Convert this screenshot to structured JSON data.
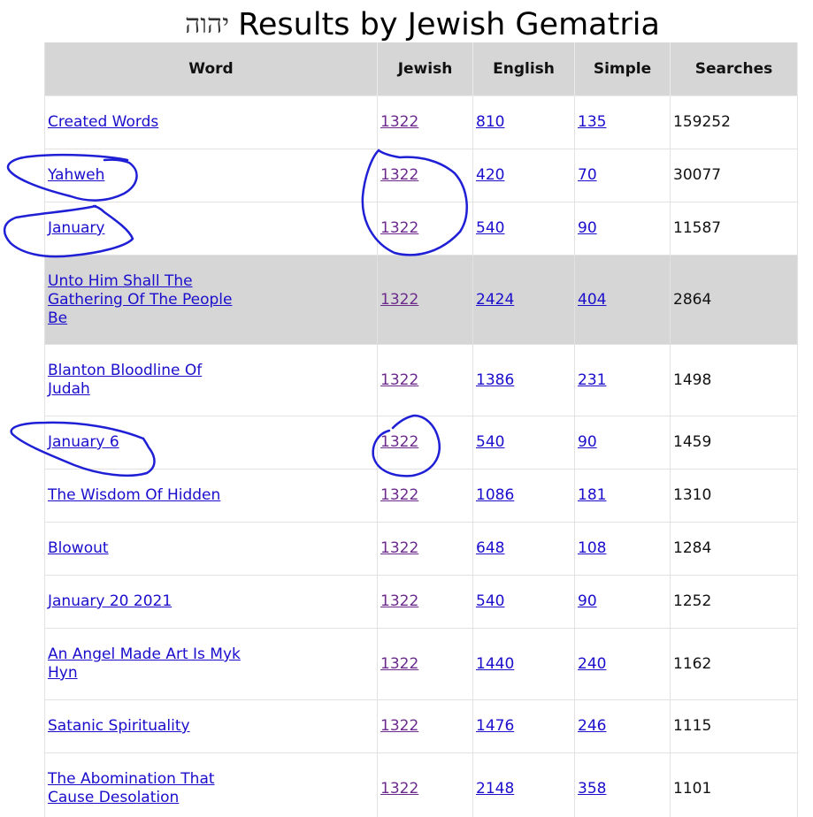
{
  "page": {
    "title_hebrew": "יהוה",
    "title": "Results by Jewish Gematria"
  },
  "table": {
    "headers": {
      "word": "Word",
      "jewish": "Jewish",
      "english": "English",
      "simple": "Simple",
      "searches": "Searches"
    },
    "rows": [
      {
        "word": "Created Words",
        "jewish": "1322",
        "english": "810",
        "simple": "135",
        "searches": "159252"
      },
      {
        "word": "Yahweh",
        "jewish": "1322",
        "english": "420",
        "simple": "70",
        "searches": "30077"
      },
      {
        "word": "January",
        "jewish": "1322",
        "english": "540",
        "simple": "90",
        "searches": "11587"
      },
      {
        "word": "Unto Him Shall The Gathering Of The People Be",
        "jewish": "1322",
        "english": "2424",
        "simple": "404",
        "searches": "2864"
      },
      {
        "word": "Blanton Bloodline Of Judah",
        "jewish": "1322",
        "english": "1386",
        "simple": "231",
        "searches": "1498"
      },
      {
        "word": "January 6",
        "jewish": "1322",
        "english": "540",
        "simple": "90",
        "searches": "1459"
      },
      {
        "word": "The Wisdom Of Hidden",
        "jewish": "1322",
        "english": "1086",
        "simple": "181",
        "searches": "1310"
      },
      {
        "word": "Blowout",
        "jewish": "1322",
        "english": "648",
        "simple": "108",
        "searches": "1284"
      },
      {
        "word": "January 20 2021",
        "jewish": "1322",
        "english": "540",
        "simple": "90",
        "searches": "1252"
      },
      {
        "word": "An Angel Made Art Is Myk Hyn",
        "jewish": "1322",
        "english": "1440",
        "simple": "240",
        "searches": "1162"
      },
      {
        "word": "Satanic Spirituality",
        "jewish": "1322",
        "english": "1476",
        "simple": "246",
        "searches": "1115"
      },
      {
        "word": "The Abomination That Cause Desolation",
        "jewish": "1322",
        "english": "2148",
        "simple": "358",
        "searches": "1101"
      }
    ]
  },
  "annotations": {
    "ink_color": "#1f1fd6"
  }
}
